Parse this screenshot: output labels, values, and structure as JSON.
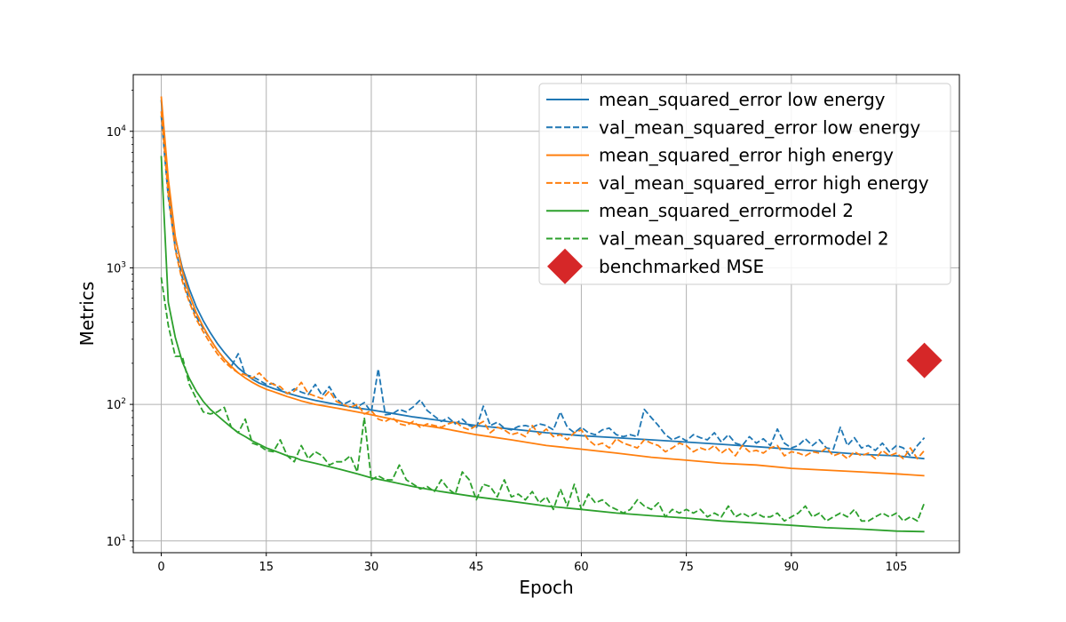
{
  "chart_data": {
    "type": "line",
    "xlabel": "Epoch",
    "ylabel": "Metrics",
    "xscale": "linear",
    "yscale": "log",
    "xlim": [
      -4,
      114
    ],
    "ylim": [
      8.2,
      26000
    ],
    "xticks": [
      0,
      15,
      30,
      45,
      60,
      75,
      90,
      105
    ],
    "yticks": [
      {
        "value": 10,
        "label": "10",
        "exp": "1"
      },
      {
        "value": 100,
        "label": "10",
        "exp": "2"
      },
      {
        "value": 1000,
        "label": "10",
        "exp": "3"
      },
      {
        "value": 10000,
        "label": "10",
        "exp": "4"
      }
    ],
    "grid": true,
    "legend_position": "upper right",
    "series": [
      {
        "name": "mean_squared_error low energy",
        "color": "#1f77b4",
        "style": "solid",
        "x": [
          0,
          1,
          2,
          3,
          4,
          5,
          6,
          7,
          8,
          9,
          10,
          11,
          12,
          13,
          14,
          15,
          16,
          17,
          18,
          19,
          20,
          22,
          25,
          28,
          30,
          33,
          36,
          40,
          45,
          50,
          55,
          60,
          65,
          70,
          75,
          80,
          85,
          90,
          95,
          100,
          105,
          109
        ],
        "y": [
          17000,
          4200,
          1650,
          1000,
          700,
          520,
          410,
          335,
          280,
          240,
          210,
          185,
          168,
          153,
          143,
          137,
          131,
          126,
          121,
          117,
          113,
          107,
          100,
          94,
          91,
          86,
          81,
          76,
          70,
          66,
          62,
          59,
          57,
          55,
          53,
          51,
          49,
          47,
          45,
          43,
          42,
          40
        ]
      },
      {
        "name": "val_mean_squared_error low energy",
        "color": "#1f77b4",
        "style": "dashed",
        "x": [
          0,
          1,
          2,
          3,
          4,
          5,
          6,
          7,
          8,
          9,
          10,
          11,
          12,
          13,
          14,
          15,
          16,
          17,
          18,
          19,
          20,
          21,
          22,
          23,
          24,
          25,
          26,
          27,
          28,
          29,
          30,
          31,
          32,
          33,
          34,
          35,
          36,
          37,
          38,
          39,
          40,
          41,
          42,
          43,
          44,
          45,
          46,
          47,
          48,
          49,
          50,
          51,
          52,
          53,
          54,
          55,
          56,
          57,
          58,
          59,
          60,
          61,
          62,
          63,
          64,
          65,
          66,
          67,
          68,
          69,
          70,
          71,
          72,
          73,
          74,
          75,
          76,
          77,
          78,
          79,
          80,
          81,
          82,
          83,
          84,
          85,
          86,
          87,
          88,
          89,
          90,
          91,
          92,
          93,
          94,
          95,
          96,
          97,
          98,
          99,
          100,
          101,
          102,
          103,
          104,
          105,
          106,
          107,
          108,
          109
        ],
        "y": [
          13000,
          3300,
          1400,
          850,
          580,
          440,
          360,
          300,
          250,
          215,
          190,
          235,
          165,
          160,
          150,
          140,
          142,
          128,
          120,
          130,
          123,
          118,
          140,
          116,
          135,
          110,
          100,
          106,
          96,
          103,
          88,
          182,
          84,
          85,
          92,
          88,
          96,
          108,
          90,
          82,
          75,
          80,
          72,
          78,
          70,
          67,
          97,
          70,
          74,
          67,
          65,
          69,
          70,
          68,
          72,
          70,
          65,
          88,
          68,
          62,
          68,
          62,
          60,
          65,
          67,
          60,
          58,
          60,
          58,
          92,
          80,
          70,
          60,
          55,
          58,
          54,
          60,
          57,
          55,
          62,
          53,
          60,
          52,
          50,
          58,
          52,
          56,
          50,
          66,
          52,
          48,
          50,
          56,
          50,
          55,
          48,
          47,
          68,
          50,
          57,
          48,
          50,
          46,
          52,
          45,
          50,
          48,
          42,
          50,
          57
        ]
      },
      {
        "name": "mean_squared_error high energy",
        "color": "#ff7f0e",
        "style": "solid",
        "x": [
          0,
          1,
          2,
          3,
          4,
          5,
          6,
          7,
          8,
          9,
          10,
          11,
          12,
          13,
          14,
          15,
          16,
          17,
          18,
          19,
          20,
          22,
          25,
          28,
          30,
          33,
          36,
          40,
          45,
          50,
          55,
          60,
          65,
          70,
          75,
          80,
          85,
          90,
          95,
          100,
          105,
          109
        ],
        "y": [
          18000,
          4500,
          1700,
          950,
          640,
          470,
          370,
          300,
          250,
          215,
          190,
          170,
          156,
          145,
          136,
          129,
          124,
          119,
          114,
          110,
          106,
          100,
          94,
          88,
          84,
          78,
          72,
          67,
          60,
          55,
          50,
          47,
          44,
          41,
          39,
          37,
          36,
          34,
          33,
          32,
          31,
          30
        ]
      },
      {
        "name": "val_mean_squared_error high energy",
        "color": "#ff7f0e",
        "style": "dashed",
        "x": [
          0,
          1,
          2,
          3,
          4,
          5,
          6,
          7,
          8,
          9,
          10,
          11,
          12,
          13,
          14,
          15,
          16,
          17,
          18,
          19,
          20,
          21,
          22,
          23,
          24,
          25,
          26,
          27,
          28,
          29,
          30,
          31,
          32,
          33,
          34,
          35,
          36,
          37,
          38,
          39,
          40,
          41,
          42,
          43,
          44,
          45,
          46,
          47,
          48,
          49,
          50,
          51,
          52,
          53,
          54,
          55,
          56,
          57,
          58,
          59,
          60,
          61,
          62,
          63,
          64,
          65,
          66,
          67,
          68,
          69,
          70,
          71,
          72,
          73,
          74,
          75,
          76,
          77,
          78,
          79,
          80,
          81,
          82,
          83,
          84,
          85,
          86,
          87,
          88,
          89,
          90,
          91,
          92,
          93,
          94,
          95,
          96,
          97,
          98,
          99,
          100,
          101,
          102,
          103,
          104,
          105,
          106,
          107,
          108,
          109
        ],
        "y": [
          14000,
          3500,
          1350,
          800,
          560,
          420,
          340,
          280,
          235,
          205,
          185,
          170,
          165,
          155,
          170,
          150,
          140,
          135,
          120,
          125,
          145,
          120,
          115,
          110,
          125,
          105,
          100,
          95,
          100,
          85,
          90,
          78,
          75,
          80,
          72,
          70,
          75,
          68,
          72,
          70,
          68,
          72,
          75,
          68,
          65,
          70,
          75,
          62,
          68,
          65,
          60,
          62,
          58,
          70,
          60,
          66,
          58,
          60,
          55,
          62,
          65,
          55,
          50,
          52,
          48,
          56,
          52,
          50,
          48,
          55,
          52,
          50,
          45,
          48,
          52,
          50,
          45,
          48,
          46,
          50,
          44,
          48,
          42,
          50,
          45,
          46,
          44,
          48,
          50,
          42,
          45,
          44,
          42,
          45,
          44,
          48,
          42,
          44,
          40,
          45,
          42,
          44,
          40,
          46,
          42,
          44,
          40,
          48,
          40,
          46
        ]
      },
      {
        "name": "mean_squared_errormodel 2",
        "color": "#2ca02c",
        "style": "solid",
        "x": [
          0,
          1,
          2,
          3,
          4,
          5,
          6,
          7,
          8,
          9,
          10,
          11,
          12,
          13,
          14,
          15,
          16,
          17,
          18,
          19,
          20,
          22,
          25,
          28,
          30,
          33,
          36,
          40,
          45,
          50,
          55,
          60,
          65,
          70,
          75,
          80,
          85,
          90,
          95,
          100,
          105,
          109
        ],
        "y": [
          6600,
          560,
          310,
          205,
          155,
          125,
          105,
          92,
          83,
          75,
          68,
          62,
          58,
          54,
          51,
          48,
          46,
          44,
          42,
          41,
          39,
          37,
          34,
          31,
          29,
          27,
          25,
          23,
          21,
          19.5,
          18,
          17,
          16,
          15.3,
          14.7,
          14,
          13.5,
          13,
          12.5,
          12.2,
          11.8,
          11.7
        ]
      },
      {
        "name": "val_mean_squared_errormodel 2",
        "color": "#2ca02c",
        "style": "dashed",
        "x": [
          0,
          1,
          2,
          3,
          4,
          5,
          6,
          7,
          8,
          9,
          10,
          11,
          12,
          13,
          14,
          15,
          16,
          17,
          18,
          19,
          20,
          21,
          22,
          23,
          24,
          25,
          26,
          27,
          28,
          29,
          30,
          31,
          32,
          33,
          34,
          35,
          36,
          37,
          38,
          39,
          40,
          41,
          42,
          43,
          44,
          45,
          46,
          47,
          48,
          49,
          50,
          51,
          52,
          53,
          54,
          55,
          56,
          57,
          58,
          59,
          60,
          61,
          62,
          63,
          64,
          65,
          66,
          67,
          68,
          69,
          70,
          71,
          72,
          73,
          74,
          75,
          76,
          77,
          78,
          79,
          80,
          81,
          82,
          83,
          84,
          85,
          86,
          87,
          88,
          89,
          90,
          91,
          92,
          93,
          94,
          95,
          96,
          97,
          98,
          99,
          100,
          101,
          102,
          103,
          104,
          105,
          106,
          107,
          108,
          109
        ],
        "y": [
          850,
          380,
          225,
          225,
          140,
          110,
          88,
          85,
          88,
          95,
          68,
          62,
          78,
          52,
          50,
          46,
          45,
          55,
          42,
          38,
          50,
          40,
          45,
          42,
          36,
          38,
          38,
          42,
          32,
          80,
          28,
          30,
          28,
          28,
          36,
          28,
          26,
          24,
          25,
          23,
          28,
          24,
          22,
          32,
          28,
          20,
          26,
          25,
          21,
          28,
          21,
          22,
          20,
          23,
          19,
          21,
          17,
          24,
          18,
          26,
          17,
          22,
          19,
          20,
          18,
          17,
          16,
          17,
          20,
          18,
          17,
          19,
          15,
          17,
          16,
          17,
          16,
          17,
          15,
          16,
          15,
          18,
          15,
          16,
          15,
          16,
          15,
          15,
          16,
          14,
          15,
          16,
          18,
          15,
          16,
          14,
          15,
          16,
          15,
          17,
          14,
          14,
          15,
          16,
          15,
          16,
          14,
          15,
          14,
          19
        ]
      }
    ],
    "markers": [
      {
        "name": "benchmarked MSE",
        "color": "#d62728",
        "shape": "diamond",
        "x": 109,
        "y": 210
      }
    ]
  }
}
